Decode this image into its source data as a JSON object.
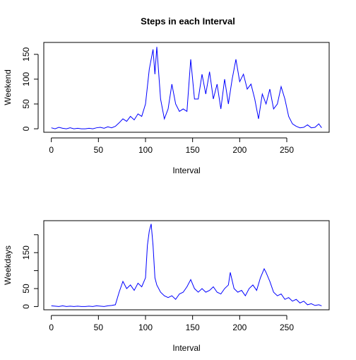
{
  "chart_data": [
    {
      "type": "line",
      "title": "Steps in each Interval",
      "xlabel": "Interval",
      "ylabel": "Weekend",
      "x": [
        0,
        4,
        8,
        12,
        16,
        20,
        24,
        28,
        32,
        36,
        40,
        44,
        48,
        52,
        56,
        60,
        64,
        68,
        72,
        76,
        80,
        84,
        88,
        92,
        96,
        100,
        104,
        108,
        110,
        112,
        116,
        120,
        124,
        128,
        132,
        136,
        140,
        144,
        148,
        152,
        156,
        160,
        164,
        168,
        172,
        176,
        180,
        184,
        188,
        192,
        196,
        200,
        204,
        208,
        212,
        216,
        220,
        224,
        228,
        232,
        236,
        240,
        244,
        248,
        252,
        256,
        260,
        264,
        268,
        272,
        276,
        280,
        284,
        287
      ],
      "series": [
        {
          "name": "Weekend",
          "color": "#0000ff",
          "values": [
            2,
            0,
            3,
            1,
            0,
            2,
            0,
            1,
            0,
            0,
            1,
            0,
            2,
            3,
            1,
            4,
            2,
            5,
            12,
            20,
            15,
            25,
            18,
            30,
            25,
            50,
            120,
            160,
            110,
            165,
            60,
            20,
            40,
            90,
            50,
            35,
            40,
            35,
            140,
            60,
            60,
            110,
            70,
            115,
            60,
            90,
            40,
            100,
            50,
            100,
            140,
            95,
            110,
            80,
            90,
            60,
            20,
            70,
            50,
            80,
            40,
            50,
            85,
            60,
            25,
            10,
            5,
            2,
            3,
            8,
            2,
            3,
            10,
            2
          ]
        }
      ],
      "xlim": [
        -8,
        295
      ],
      "ylim": [
        -7,
        174
      ],
      "xticks": [
        0,
        50,
        100,
        150,
        200,
        250
      ],
      "yticks": [
        0,
        50,
        100,
        150
      ]
    },
    {
      "type": "line",
      "xlabel": "Interval",
      "ylabel": "Weekdays",
      "x": [
        0,
        4,
        8,
        12,
        16,
        20,
        24,
        28,
        32,
        36,
        40,
        44,
        48,
        52,
        56,
        60,
        64,
        68,
        72,
        76,
        80,
        84,
        88,
        92,
        96,
        100,
        102,
        104,
        106,
        108,
        110,
        112,
        116,
        120,
        124,
        128,
        132,
        136,
        140,
        144,
        148,
        152,
        156,
        160,
        164,
        168,
        172,
        176,
        180,
        184,
        188,
        190,
        194,
        198,
        202,
        206,
        210,
        214,
        218,
        222,
        226,
        228,
        232,
        236,
        240,
        244,
        248,
        252,
        256,
        260,
        264,
        268,
        272,
        276,
        280,
        284,
        287
      ],
      "series": [
        {
          "name": "Weekdays",
          "color": "#0000ff",
          "values": [
            2,
            1,
            0,
            2,
            0,
            1,
            0,
            1,
            0,
            0,
            1,
            0,
            2,
            1,
            0,
            2,
            3,
            5,
            40,
            70,
            50,
            60,
            45,
            65,
            55,
            80,
            170,
            210,
            230,
            170,
            80,
            60,
            40,
            30,
            25,
            30,
            20,
            35,
            40,
            55,
            75,
            50,
            40,
            50,
            40,
            45,
            55,
            40,
            35,
            50,
            60,
            95,
            50,
            40,
            45,
            30,
            50,
            60,
            45,
            80,
            105,
            95,
            70,
            40,
            30,
            35,
            20,
            25,
            15,
            20,
            10,
            15,
            5,
            8,
            3,
            5,
            2
          ]
        }
      ],
      "xlim": [
        -8,
        295
      ],
      "ylim": [
        -9,
        239
      ],
      "xticks": [
        0,
        50,
        100,
        150,
        200,
        250
      ],
      "yticks": [
        0,
        50,
        150
      ],
      "unlabeled_yticks": [
        100,
        200
      ]
    }
  ]
}
